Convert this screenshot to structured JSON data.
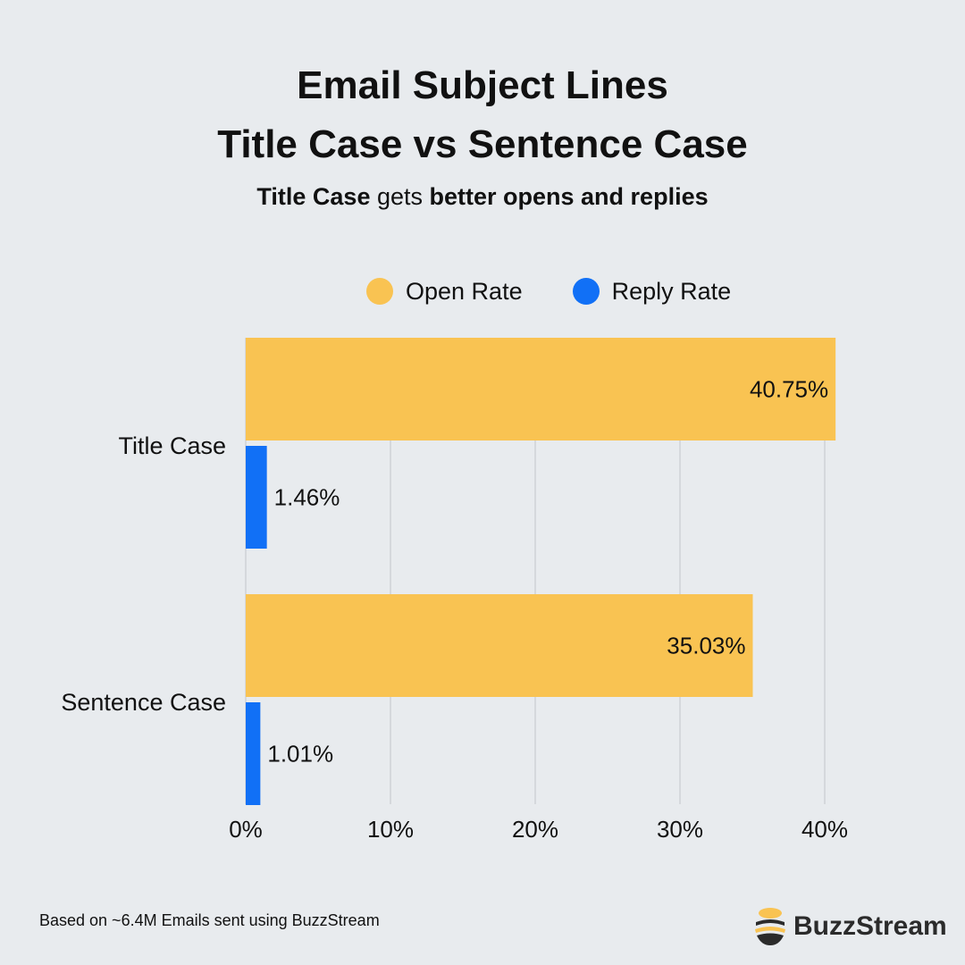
{
  "header": {
    "title_line_1": "Email Subject Lines",
    "title_line_2": "Title Case vs Sentence Case",
    "subtitle_part_1": "Title Case",
    "subtitle_part_2": " gets ",
    "subtitle_part_3": "better opens and replies"
  },
  "footer": {
    "note": "Based on ~6.4M Emails sent using BuzzStream",
    "brand": "BuzzStream"
  },
  "colors": {
    "background": "#e8ebee",
    "open_rate": "#f9c352",
    "reply_rate": "#1170f6",
    "gridline": "#c2c6ca",
    "brand_yellow": "#f9c352",
    "brand_dark": "#2b2b2b"
  },
  "chart_data": {
    "type": "bar",
    "orientation": "horizontal",
    "categories": [
      "Title Case",
      "Sentence Case"
    ],
    "series": [
      {
        "name": "Open Rate",
        "values": [
          40.75,
          35.03
        ],
        "labels": [
          "40.75%",
          "35.03%"
        ],
        "color": "#f9c352"
      },
      {
        "name": "Reply Rate",
        "values": [
          1.46,
          1.01
        ],
        "labels": [
          "1.46%",
          "1.01%"
        ],
        "color": "#1170f6"
      }
    ],
    "x_ticks": [
      0,
      10,
      20,
      30,
      40
    ],
    "x_tick_labels": [
      "0%",
      "10%",
      "20%",
      "30%",
      "40%"
    ],
    "xlim": [
      0,
      40
    ],
    "grid": "vertical",
    "legend": "top"
  }
}
